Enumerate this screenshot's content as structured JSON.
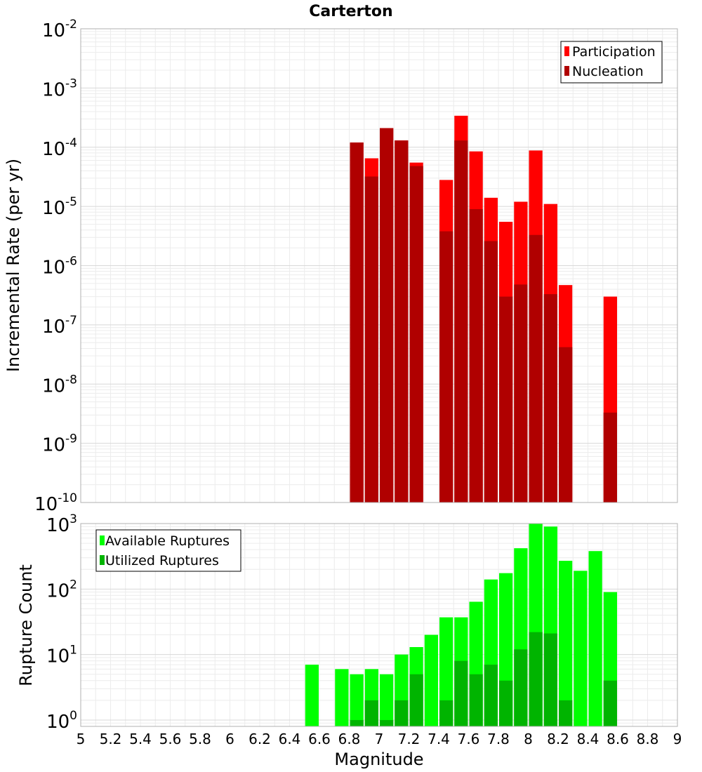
{
  "chart_data": [
    {
      "type": "bar",
      "title": "Carterton",
      "xlabel": "",
      "ylabel": "Incremental Rate (per yr)",
      "yscale": "log",
      "ylim": [
        1e-10,
        0.01
      ],
      "xlim": [
        5,
        9
      ],
      "grid": true,
      "legend_position": "top-right",
      "x": [
        6.85,
        6.95,
        7.05,
        7.15,
        7.25,
        7.35,
        7.45,
        7.55,
        7.65,
        7.75,
        7.85,
        7.95,
        8.05,
        8.15,
        8.25,
        8.35,
        8.45,
        8.55
      ],
      "series": [
        {
          "name": "Participation",
          "color": "#ff0000",
          "values": [
            0.00012,
            6.5e-05,
            0.00021,
            0.00013,
            5.5e-05,
            null,
            2.8e-05,
            0.00034,
            8.5e-05,
            1.4e-05,
            5.5e-06,
            1.2e-05,
            8.8e-05,
            1.1e-05,
            4.7e-07,
            null,
            null,
            3e-07
          ]
        },
        {
          "name": "Nucleation",
          "color": "#b00000",
          "values": [
            0.00012,
            3.2e-05,
            0.00021,
            0.00013,
            4.8e-05,
            null,
            3.8e-06,
            0.00013,
            9e-06,
            2.6e-06,
            3e-07,
            4.8e-07,
            3.3e-06,
            3.3e-07,
            4.2e-08,
            null,
            null,
            3.3e-09
          ]
        }
      ]
    },
    {
      "type": "bar",
      "title": "",
      "xlabel": "Magnitude",
      "ylabel": "Rupture Count",
      "yscale": "log",
      "ylim": [
        0.8,
        1000
      ],
      "xlim": [
        5,
        9
      ],
      "grid": true,
      "legend_position": "top-left",
      "x": [
        6.55,
        6.75,
        6.85,
        6.95,
        7.05,
        7.15,
        7.25,
        7.35,
        7.45,
        7.55,
        7.65,
        7.75,
        7.85,
        7.95,
        8.05,
        8.15,
        8.25,
        8.35,
        8.45,
        8.55
      ],
      "series": [
        {
          "name": "Available Ruptures",
          "color": "#00ff00",
          "values": [
            7,
            6,
            5,
            6,
            5,
            10,
            13,
            20,
            37,
            37,
            64,
            140,
            175,
            420,
            1000,
            900,
            270,
            190,
            380,
            90
          ]
        },
        {
          "name": "Utilized Ruptures",
          "color": "#00b400",
          "values": [
            null,
            null,
            1,
            2,
            1,
            2,
            5,
            null,
            2,
            8,
            5,
            7,
            4,
            12,
            22,
            21,
            2,
            null,
            null,
            4
          ]
        }
      ]
    }
  ],
  "x_ticks": [
    "5",
    "5.2",
    "5.4",
    "5.6",
    "5.8",
    "6",
    "6.2",
    "6.4",
    "6.6",
    "6.8",
    "7",
    "7.2",
    "7.4",
    "7.6",
    "7.8",
    "8",
    "8.2",
    "8.4",
    "8.6",
    "8.8",
    "9"
  ],
  "top_y_ticks": [
    {
      "base": "10",
      "exp": "-2"
    },
    {
      "base": "10",
      "exp": "-3"
    },
    {
      "base": "10",
      "exp": "-4"
    },
    {
      "base": "10",
      "exp": "-5"
    },
    {
      "base": "10",
      "exp": "-6"
    },
    {
      "base": "10",
      "exp": "-7"
    },
    {
      "base": "10",
      "exp": "-8"
    },
    {
      "base": "10",
      "exp": "-9"
    },
    {
      "base": "10",
      "exp": "-10"
    }
  ],
  "bottom_y_ticks": [
    {
      "base": "10",
      "exp": "3"
    },
    {
      "base": "10",
      "exp": "2"
    },
    {
      "base": "10",
      "exp": "1"
    },
    {
      "base": "10",
      "exp": "0"
    }
  ]
}
